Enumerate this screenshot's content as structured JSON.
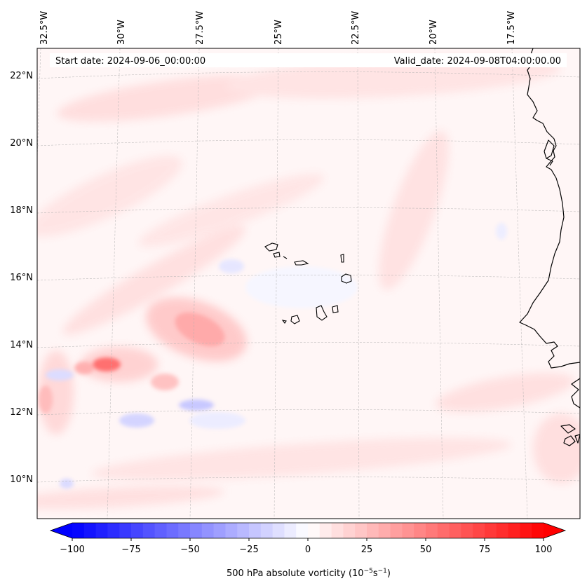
{
  "map": {
    "start_date": "Start date: 2024-09-06_00:00:00",
    "valid_date": "Valid_date: 2024-09-08T04:00:00.00",
    "lon_labels": [
      "32.5°W",
      "30°W",
      "27.5°W",
      "25°W",
      "22.5°W",
      "20°W",
      "17.5°W"
    ],
    "lat_labels": [
      "22°N",
      "20°N",
      "18°N",
      "16°N",
      "14°N",
      "12°N",
      "10°N"
    ],
    "features": [
      "Cape Verde islands",
      "West African coastline"
    ]
  },
  "colorbar": {
    "label": "500 hPa absolute vorticity (10",
    "label_exp1": "−5",
    "label_mid": "s",
    "label_exp2": "−1",
    "label_end": ")",
    "tick_labels": [
      "−100",
      "−75",
      "−50",
      "−25",
      "0",
      "25",
      "50",
      "75",
      "100"
    ],
    "range": [
      -100,
      100
    ],
    "colormap": "bwr",
    "color_min": "#0000ff",
    "color_mid": "#ffffff",
    "color_max": "#ff0000"
  }
}
